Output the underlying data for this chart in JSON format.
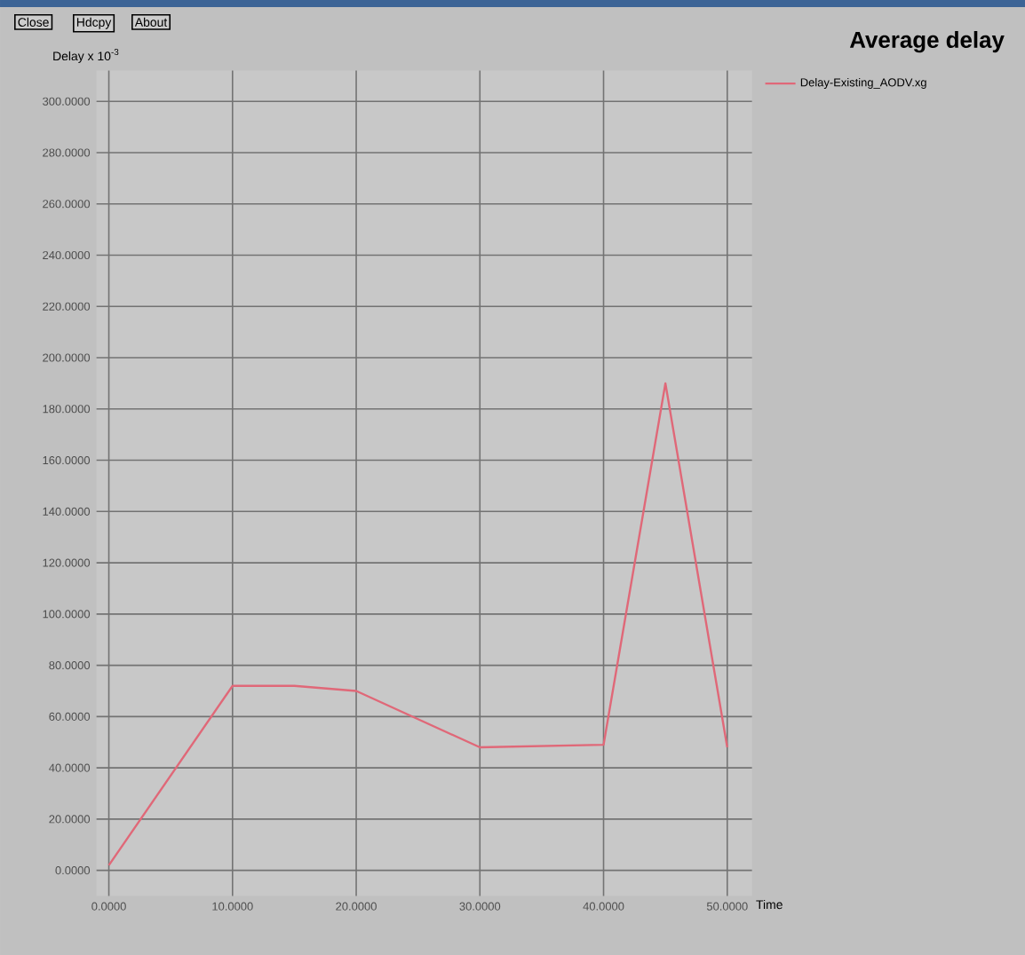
{
  "chart_data": {
    "type": "line",
    "title": "Average delay",
    "ylabel": "Delay x 10$^{-3}$",
    "xlabel": "Time",
    "annotations": [
      "Close",
      "Hdcpy",
      "About"
    ],
    "x": [
      0,
      10,
      15,
      20,
      30,
      40,
      45,
      50
    ],
    "series": [
      {
        "name": "Delay-Existing_AODV.xg",
        "color": "#e06878",
        "values": [
          2,
          72,
          72,
          70,
          48,
          49,
          190,
          48
        ]
      }
    ],
    "xlim": [
      -1,
      52
    ],
    "ylim": [
      -10,
      312
    ],
    "xticks": [
      {
        "value": 0,
        "label": "0.0000"
      },
      {
        "value": 10,
        "label": "10.0000"
      },
      {
        "value": 20,
        "label": "20.0000"
      },
      {
        "value": 30,
        "label": "30.0000"
      },
      {
        "value": 40,
        "label": "40.0000"
      },
      {
        "value": 50,
        "label": "50.0000"
      }
    ],
    "yticks": [
      {
        "value": 0,
        "label": "0.0000"
      },
      {
        "value": 20,
        "label": "20.0000"
      },
      {
        "value": 40,
        "label": "40.0000"
      },
      {
        "value": 60,
        "label": "60.0000"
      },
      {
        "value": 80,
        "label": "80.0000"
      },
      {
        "value": 100,
        "label": "100.0000"
      },
      {
        "value": 120,
        "label": "120.0000"
      },
      {
        "value": 140,
        "label": "140.0000"
      },
      {
        "value": 160,
        "label": "160.0000"
      },
      {
        "value": 180,
        "label": "180.0000"
      },
      {
        "value": 200,
        "label": "200.0000"
      },
      {
        "value": 220,
        "label": "220.0000"
      },
      {
        "value": 240,
        "label": "240.0000"
      },
      {
        "value": 260,
        "label": "260.0000"
      },
      {
        "value": 280,
        "label": "280.0000"
      },
      {
        "value": 300,
        "label": "300.0000"
      }
    ],
    "grid": true,
    "legend": "top right",
    "line_style": "solid"
  }
}
